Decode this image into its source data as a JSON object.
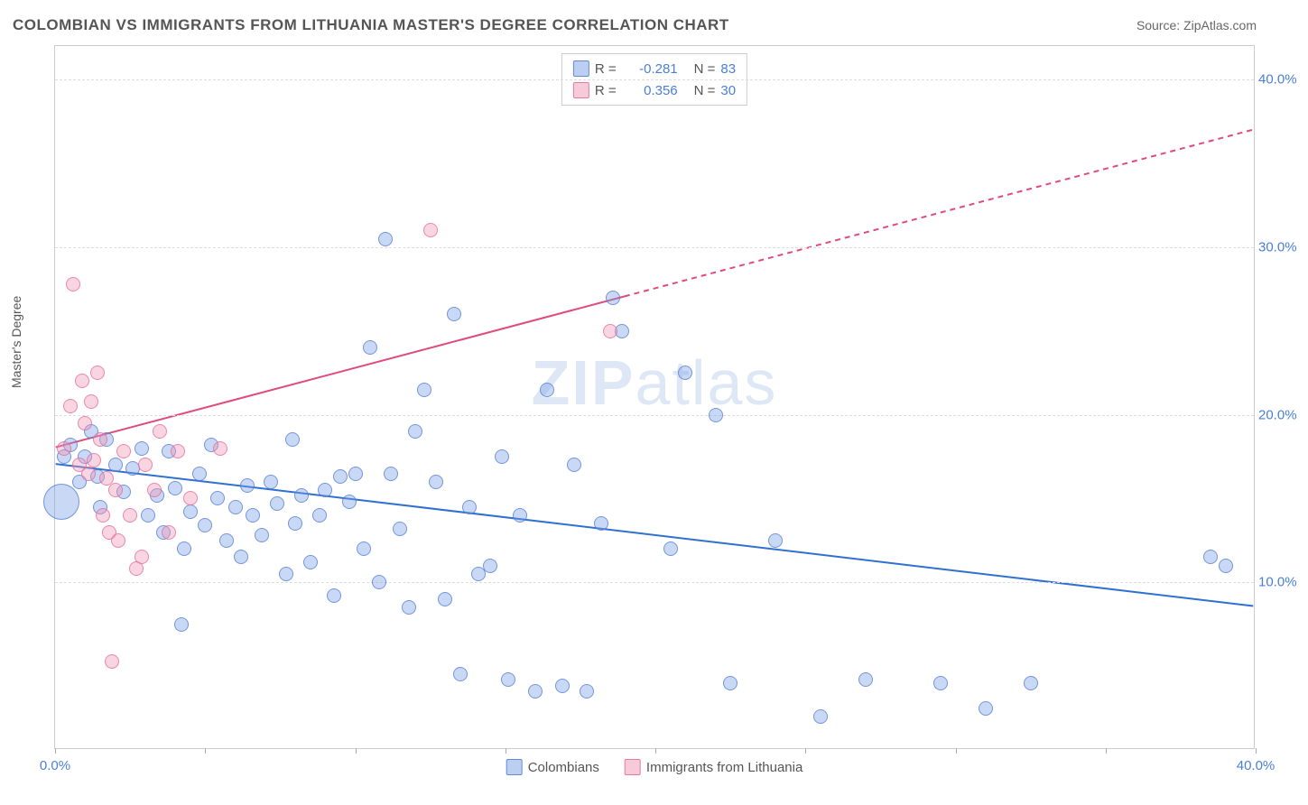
{
  "title": "COLOMBIAN VS IMMIGRANTS FROM LITHUANIA MASTER'S DEGREE CORRELATION CHART",
  "source": "Source: ZipAtlas.com",
  "ylabel": "Master's Degree",
  "watermark": {
    "bold": "ZIP",
    "light": "atlas"
  },
  "chart": {
    "type": "scatter",
    "xlim": [
      0,
      40
    ],
    "ylim": [
      0,
      42
    ],
    "x_ticks": [
      0,
      5,
      10,
      15,
      20,
      25,
      30,
      35,
      40
    ],
    "x_tick_labels_shown": {
      "0": "0.0%",
      "40": "40.0%"
    },
    "y_ticks": [
      10,
      20,
      30,
      40
    ],
    "y_tick_labels": [
      "10.0%",
      "20.0%",
      "30.0%",
      "40.0%"
    ],
    "grid_color": "#dddddd",
    "background_color": "#ffffff",
    "axis_label_color": "#4a7fd8",
    "point_radius": 8,
    "series": [
      {
        "name": "Colombians",
        "color_fill": "rgba(120,160,230,0.4)",
        "color_stroke": "rgba(80,120,210,0.7)",
        "R": -0.281,
        "N": 83,
        "trend": {
          "x1": 0,
          "y1": 17.0,
          "x2": 40,
          "y2": 8.5,
          "color": "#2f70d0",
          "width": 2,
          "dash": "none"
        },
        "points": [
          {
            "x": 0.2,
            "y": 14.8,
            "r": 20
          },
          {
            "x": 0.3,
            "y": 17.5
          },
          {
            "x": 0.5,
            "y": 18.2
          },
          {
            "x": 0.8,
            "y": 16.0
          },
          {
            "x": 1.0,
            "y": 17.5
          },
          {
            "x": 1.2,
            "y": 19.0
          },
          {
            "x": 1.4,
            "y": 16.3
          },
          {
            "x": 1.5,
            "y": 14.5
          },
          {
            "x": 1.7,
            "y": 18.5
          },
          {
            "x": 2.0,
            "y": 17.0
          },
          {
            "x": 2.3,
            "y": 15.4
          },
          {
            "x": 2.6,
            "y": 16.8
          },
          {
            "x": 2.9,
            "y": 18.0
          },
          {
            "x": 3.1,
            "y": 14.0
          },
          {
            "x": 3.4,
            "y": 15.2
          },
          {
            "x": 3.6,
            "y": 13.0
          },
          {
            "x": 3.8,
            "y": 17.8
          },
          {
            "x": 4.0,
            "y": 15.6
          },
          {
            "x": 4.2,
            "y": 7.5
          },
          {
            "x": 4.3,
            "y": 12.0
          },
          {
            "x": 4.5,
            "y": 14.2
          },
          {
            "x": 4.8,
            "y": 16.5
          },
          {
            "x": 5.0,
            "y": 13.4
          },
          {
            "x": 5.2,
            "y": 18.2
          },
          {
            "x": 5.4,
            "y": 15.0
          },
          {
            "x": 5.7,
            "y": 12.5
          },
          {
            "x": 6.0,
            "y": 14.5
          },
          {
            "x": 6.2,
            "y": 11.5
          },
          {
            "x": 6.4,
            "y": 15.8
          },
          {
            "x": 6.6,
            "y": 14.0
          },
          {
            "x": 6.9,
            "y": 12.8
          },
          {
            "x": 7.2,
            "y": 16.0
          },
          {
            "x": 7.4,
            "y": 14.7
          },
          {
            "x": 7.7,
            "y": 10.5
          },
          {
            "x": 7.9,
            "y": 18.5
          },
          {
            "x": 8.0,
            "y": 13.5
          },
          {
            "x": 8.2,
            "y": 15.2
          },
          {
            "x": 8.5,
            "y": 11.2
          },
          {
            "x": 8.8,
            "y": 14.0
          },
          {
            "x": 9.0,
            "y": 15.5
          },
          {
            "x": 9.3,
            "y": 9.2
          },
          {
            "x": 9.5,
            "y": 16.3
          },
          {
            "x": 9.8,
            "y": 14.8
          },
          {
            "x": 10.0,
            "y": 16.5
          },
          {
            "x": 10.3,
            "y": 12.0
          },
          {
            "x": 10.5,
            "y": 24.0
          },
          {
            "x": 10.8,
            "y": 10.0
          },
          {
            "x": 11.0,
            "y": 30.5
          },
          {
            "x": 11.2,
            "y": 16.5
          },
          {
            "x": 11.5,
            "y": 13.2
          },
          {
            "x": 11.8,
            "y": 8.5
          },
          {
            "x": 12.0,
            "y": 19.0
          },
          {
            "x": 12.3,
            "y": 21.5
          },
          {
            "x": 12.7,
            "y": 16.0
          },
          {
            "x": 13.0,
            "y": 9.0
          },
          {
            "x": 13.3,
            "y": 26.0
          },
          {
            "x": 13.5,
            "y": 4.5
          },
          {
            "x": 13.8,
            "y": 14.5
          },
          {
            "x": 14.1,
            "y": 10.5
          },
          {
            "x": 14.5,
            "y": 11.0
          },
          {
            "x": 14.9,
            "y": 17.5
          },
          {
            "x": 15.1,
            "y": 4.2
          },
          {
            "x": 15.5,
            "y": 14.0
          },
          {
            "x": 16.0,
            "y": 3.5
          },
          {
            "x": 16.4,
            "y": 21.5
          },
          {
            "x": 16.9,
            "y": 3.8
          },
          {
            "x": 17.3,
            "y": 17.0
          },
          {
            "x": 17.7,
            "y": 3.5
          },
          {
            "x": 18.2,
            "y": 13.5
          },
          {
            "x": 18.6,
            "y": 27.0
          },
          {
            "x": 18.9,
            "y": 25.0
          },
          {
            "x": 20.5,
            "y": 12.0
          },
          {
            "x": 21.0,
            "y": 22.5
          },
          {
            "x": 22.0,
            "y": 20.0
          },
          {
            "x": 22.5,
            "y": 4.0
          },
          {
            "x": 24.0,
            "y": 12.5
          },
          {
            "x": 25.5,
            "y": 2.0
          },
          {
            "x": 27.0,
            "y": 4.2
          },
          {
            "x": 29.5,
            "y": 4.0
          },
          {
            "x": 31.0,
            "y": 2.5
          },
          {
            "x": 32.5,
            "y": 4.0
          },
          {
            "x": 38.5,
            "y": 11.5
          },
          {
            "x": 39.0,
            "y": 11.0
          }
        ]
      },
      {
        "name": "Immigrants from Lithuania",
        "color_fill": "rgba(240,150,180,0.4)",
        "color_stroke": "rgba(230,100,150,0.7)",
        "R": 0.356,
        "N": 30,
        "trend": {
          "x1": 0,
          "y1": 18.0,
          "x2": 40,
          "y2": 37.0,
          "color": "#e04a7d",
          "width": 2,
          "dash_solid_until_x": 19,
          "dash": "6,5"
        },
        "points": [
          {
            "x": 0.3,
            "y": 18.0
          },
          {
            "x": 0.5,
            "y": 20.5
          },
          {
            "x": 0.6,
            "y": 27.8
          },
          {
            "x": 0.8,
            "y": 17.0
          },
          {
            "x": 0.9,
            "y": 22.0
          },
          {
            "x": 1.0,
            "y": 19.5
          },
          {
            "x": 1.1,
            "y": 16.5
          },
          {
            "x": 1.2,
            "y": 20.8
          },
          {
            "x": 1.3,
            "y": 17.3
          },
          {
            "x": 1.4,
            "y": 22.5
          },
          {
            "x": 1.5,
            "y": 18.5
          },
          {
            "x": 1.6,
            "y": 14.0
          },
          {
            "x": 1.7,
            "y": 16.2
          },
          {
            "x": 1.8,
            "y": 13.0
          },
          {
            "x": 1.9,
            "y": 5.3
          },
          {
            "x": 2.0,
            "y": 15.5
          },
          {
            "x": 2.1,
            "y": 12.5
          },
          {
            "x": 2.3,
            "y": 17.8
          },
          {
            "x": 2.5,
            "y": 14.0
          },
          {
            "x": 2.7,
            "y": 10.8
          },
          {
            "x": 2.9,
            "y": 11.5
          },
          {
            "x": 3.0,
            "y": 17.0
          },
          {
            "x": 3.3,
            "y": 15.5
          },
          {
            "x": 3.5,
            "y": 19.0
          },
          {
            "x": 3.8,
            "y": 13.0
          },
          {
            "x": 4.1,
            "y": 17.8
          },
          {
            "x": 4.5,
            "y": 15.0
          },
          {
            "x": 5.5,
            "y": 18.0
          },
          {
            "x": 12.5,
            "y": 31.0
          },
          {
            "x": 18.5,
            "y": 25.0
          }
        ]
      }
    ]
  },
  "legend_top": [
    {
      "swatch": "blue",
      "R": "-0.281",
      "N": "83"
    },
    {
      "swatch": "pink",
      "R": "0.356",
      "N": "30"
    }
  ],
  "legend_bottom": [
    {
      "swatch": "blue",
      "label": "Colombians"
    },
    {
      "swatch": "pink",
      "label": "Immigrants from Lithuania"
    }
  ]
}
